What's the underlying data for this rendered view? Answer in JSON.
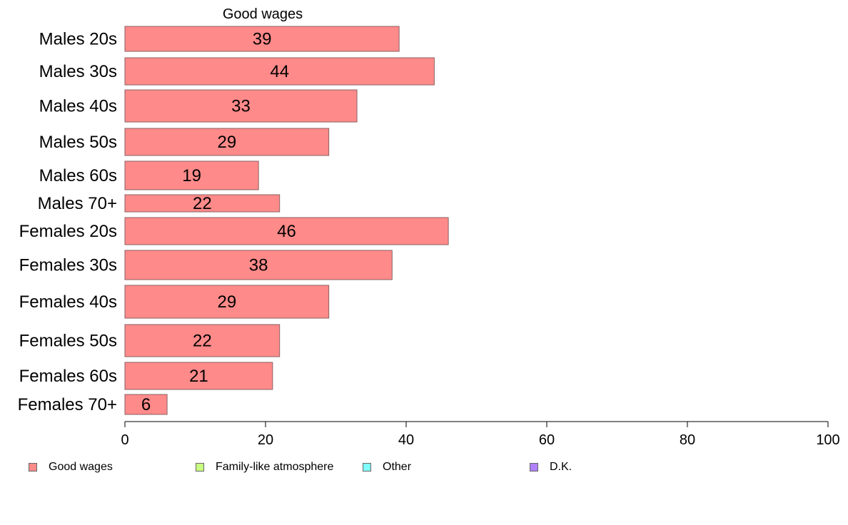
{
  "chart_data": {
    "type": "bar",
    "orientation": "horizontal",
    "title": "Good wages",
    "categories": [
      "Males 20s",
      "Males 30s",
      "Males 40s",
      "Males 50s",
      "Males 60s",
      "Males 70+",
      "Females 20s",
      "Females 30s",
      "Females 40s",
      "Females 50s",
      "Females 60s",
      "Females 70+"
    ],
    "values": [
      39,
      44,
      33,
      29,
      19,
      22,
      46,
      38,
      29,
      22,
      21,
      6
    ],
    "value_labels": [
      "39",
      "44",
      "33",
      "29",
      "19",
      "22",
      "46",
      "38",
      "29",
      "22",
      "21",
      "6"
    ],
    "xlim": [
      0,
      100
    ],
    "x_ticks": [
      "0",
      "20",
      "40",
      "60",
      "80",
      "100"
    ],
    "grid": false,
    "series_color": "#ff8a8a",
    "legend_position": "bottom",
    "legend": [
      {
        "label": "Good wages",
        "color": "#ff8a8a"
      },
      {
        "label": "Family-like atmosphere",
        "color": "#c8ff80"
      },
      {
        "label": "Other",
        "color": "#80ffff"
      },
      {
        "label": "D.K.",
        "color": "#b080ff"
      }
    ]
  }
}
